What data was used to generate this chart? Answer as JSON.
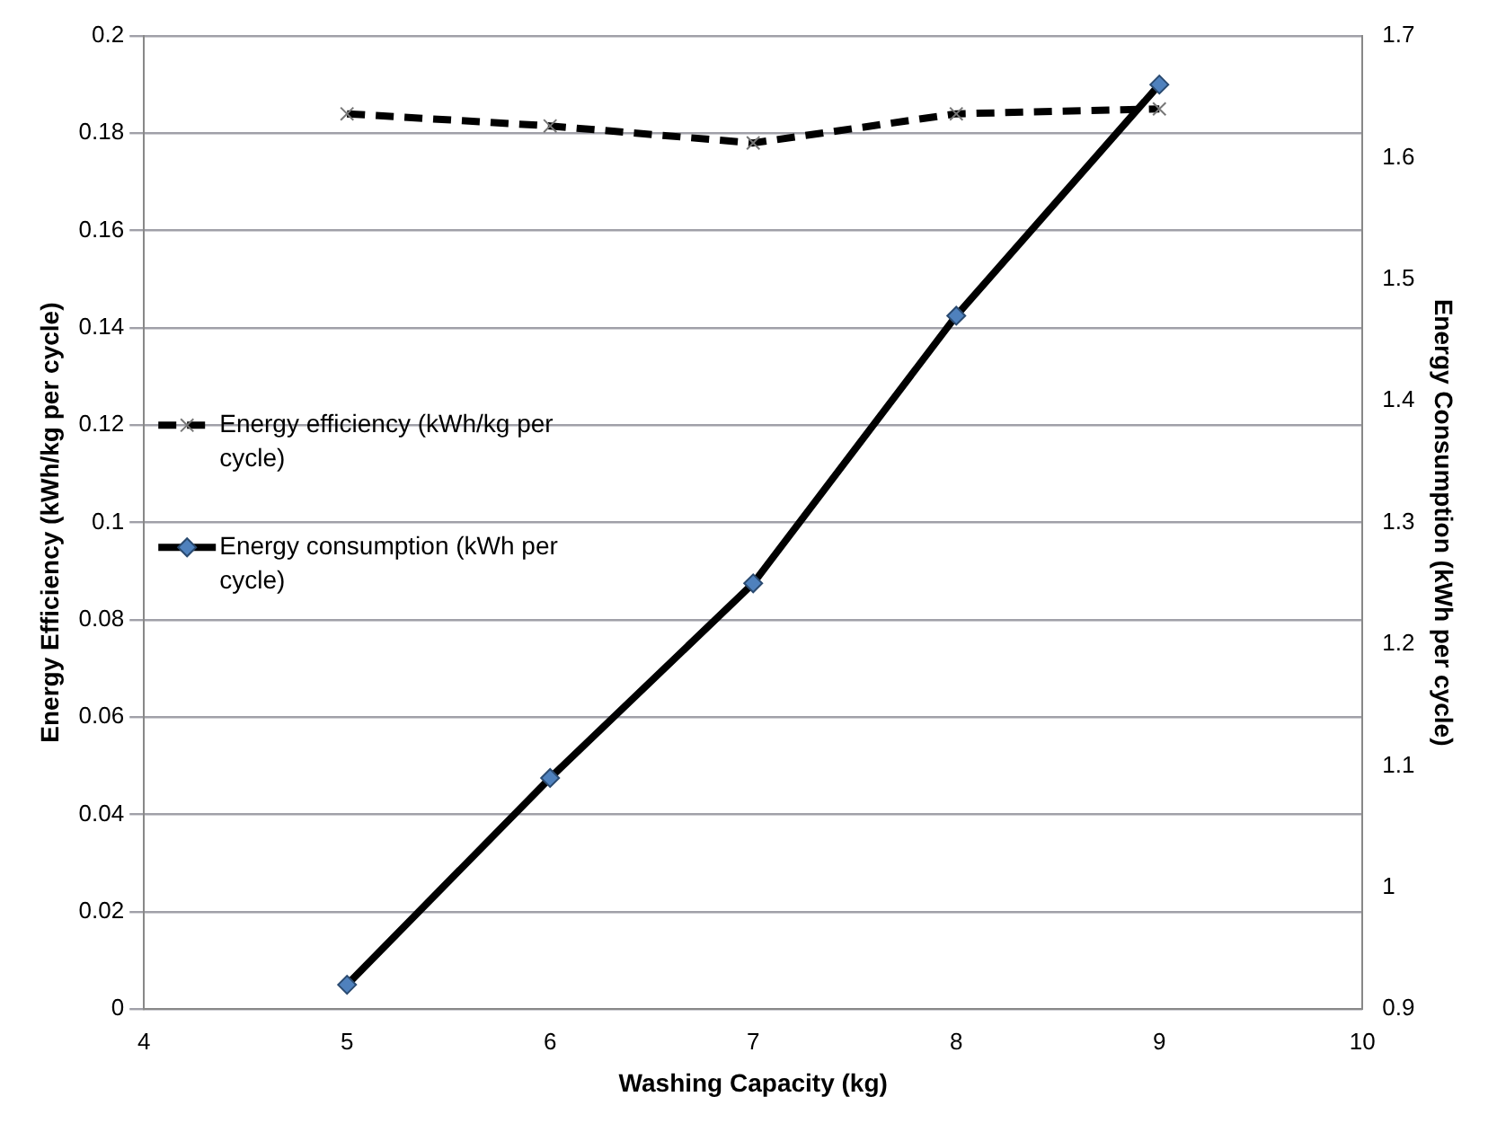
{
  "chart_data": {
    "type": "line",
    "xlabel": "Washing Capacity (kg)",
    "ylabel": "Energy Efficiency (kWh/kg per cycle)",
    "y2label": "Energy Consumption (kWh per cycle)",
    "x": [
      5,
      6,
      7,
      8,
      9
    ],
    "series": [
      {
        "name": "Energy efficiency (kWh/kg per cycle)",
        "color": "#000000",
        "values": [
          0.184,
          0.1815,
          0.178,
          0.184,
          0.185
        ],
        "marker": "cross",
        "line_style": "dashed"
      },
      {
        "name": "Energy consumption (kWh per cycle)",
        "color": "#000000",
        "values": [
          0.92,
          1.09,
          1.25,
          1.47,
          1.66
        ],
        "marker": "diamond",
        "line_style": "solid",
        "axis": "y2"
      }
    ],
    "xlim": [
      4,
      10
    ],
    "xticks": [
      4,
      5,
      6,
      7,
      8,
      9,
      10
    ],
    "ylim": [
      0,
      0.2
    ],
    "yticks": [
      0,
      0.02,
      0.04,
      0.06,
      0.08,
      0.1,
      0.12,
      0.14,
      0.16,
      0.18,
      0.2
    ],
    "y2lim": [
      0.9,
      1.7
    ],
    "y2ticks": [
      0.9,
      1,
      1.1,
      1.2,
      1.3,
      1.4,
      1.5,
      1.6,
      1.7
    ],
    "grid": "y",
    "legend": "left"
  }
}
